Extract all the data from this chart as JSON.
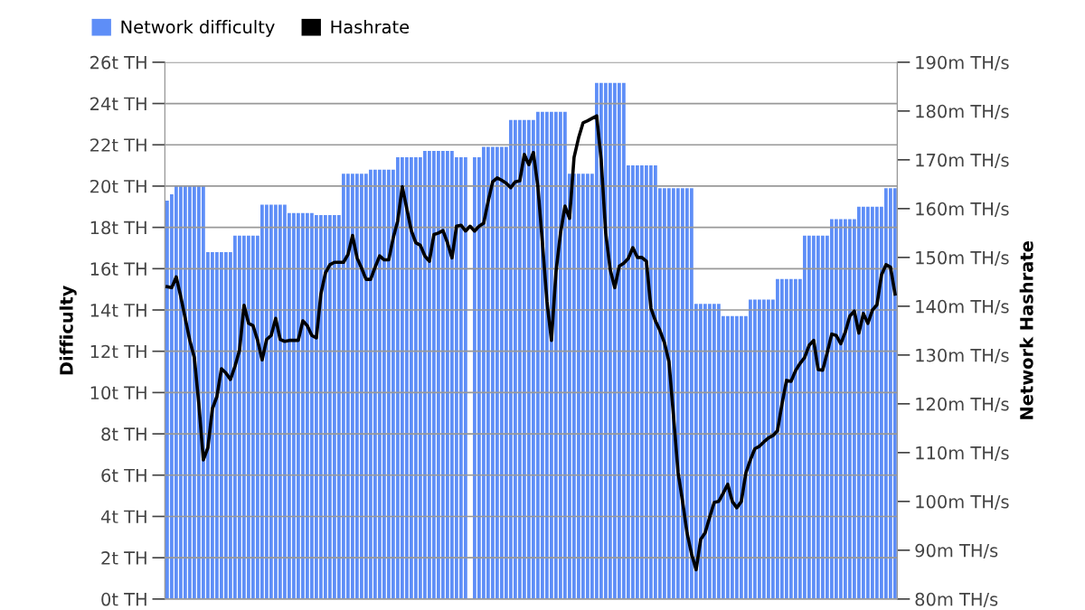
{
  "chart_data": {
    "type": "bar",
    "ylabel": "Difficulty",
    "y2label": "Network Hashrate",
    "categories": [
      null,
      null,
      null,
      null,
      null,
      null,
      null,
      null,
      null,
      null,
      null,
      null,
      null,
      null,
      null,
      null,
      null,
      null,
      null,
      null,
      null,
      null,
      null,
      null,
      null,
      null,
      null,
      null,
      null,
      null,
      null,
      null,
      null,
      null,
      null,
      null,
      null,
      null,
      null,
      null,
      null,
      null,
      null,
      null,
      null,
      null,
      null,
      null,
      null,
      null,
      null,
      null,
      null,
      null,
      null,
      null,
      null,
      null,
      null,
      null,
      null,
      null,
      null,
      null,
      null,
      null,
      null,
      null,
      null,
      null,
      null,
      null,
      null,
      null,
      null,
      null,
      null,
      null,
      null,
      null,
      null,
      null,
      null,
      null,
      null,
      null,
      null,
      null,
      null,
      null,
      null,
      null,
      null,
      null,
      null,
      null,
      null,
      null,
      null,
      null,
      null,
      null,
      null,
      null,
      null,
      null,
      null,
      null,
      null,
      null,
      null,
      null,
      null,
      null,
      null,
      null,
      null,
      null,
      null,
      null,
      null,
      null,
      null,
      null,
      null,
      null,
      null,
      null,
      null,
      null,
      null,
      null,
      null,
      null,
      null,
      null,
      null,
      null,
      null,
      null,
      null,
      null,
      null,
      null,
      null,
      null,
      null,
      null,
      null,
      null,
      null,
      null,
      null,
      null,
      null,
      null,
      null,
      null,
      null,
      null,
      null,
      null
    ],
    "series": [
      {
        "name": "Network difficulty",
        "color": "#5e8ef7",
        "values": [
          19.3,
          19.6,
          20.0,
          20.0,
          20.0,
          20.0,
          20.0,
          20.0,
          20.0,
          16.8,
          16.8,
          16.8,
          16.8,
          16.8,
          16.8,
          17.6,
          17.6,
          17.6,
          17.6,
          17.6,
          17.6,
          19.1,
          19.1,
          19.1,
          19.1,
          19.1,
          19.1,
          18.7,
          18.7,
          18.7,
          18.7,
          18.7,
          18.7,
          18.6,
          18.6,
          18.6,
          18.6,
          18.6,
          18.6,
          20.6,
          20.6,
          20.6,
          20.6,
          20.6,
          20.6,
          20.8,
          20.8,
          20.8,
          20.8,
          20.8,
          20.8,
          21.4,
          21.4,
          21.4,
          21.4,
          21.4,
          21.4,
          21.7,
          21.7,
          21.7,
          21.7,
          21.7,
          21.7,
          21.7,
          21.4,
          21.4,
          21.4,
          null,
          21.4,
          21.4,
          21.9,
          21.9,
          21.9,
          21.9,
          21.9,
          21.9,
          23.2,
          23.2,
          23.2,
          23.2,
          23.2,
          23.2,
          23.6,
          23.6,
          23.6,
          23.6,
          23.6,
          23.6,
          23.6,
          20.6,
          20.6,
          20.6,
          20.6,
          20.6,
          20.6,
          25.0,
          25.0,
          25.0,
          25.0,
          25.0,
          25.0,
          25.0,
          21.0,
          21.0,
          21.0,
          21.0,
          21.0,
          21.0,
          21.0,
          19.9,
          19.9,
          19.9,
          19.9,
          19.9,
          19.9,
          19.9,
          19.9,
          14.3,
          14.3,
          14.3,
          14.3,
          14.3,
          14.3,
          13.7,
          13.7,
          13.7,
          13.7,
          13.7,
          13.7,
          14.5,
          14.5,
          14.5,
          14.5,
          14.5,
          14.5,
          15.5,
          15.5,
          15.5,
          15.5,
          15.5,
          15.5,
          17.6,
          17.6,
          17.6,
          17.6,
          17.6,
          17.6,
          18.4,
          18.4,
          18.4,
          18.4,
          18.4,
          18.4,
          19.0,
          19.0,
          19.0,
          19.0,
          19.0,
          19.0,
          19.9,
          19.9,
          19.9
        ]
      },
      {
        "name": "Hashrate",
        "type": "line",
        "axis": "y2",
        "color": "#000000",
        "values": [
          144.0,
          143.8,
          146.0,
          142.0,
          137.5,
          133.0,
          129.5,
          120.0,
          108.5,
          111.0,
          119.0,
          121.5,
          127.2,
          126.3,
          125.0,
          127.7,
          131.0,
          140.2,
          136.5,
          136.0,
          133.0,
          129.0,
          133.2,
          134.0,
          137.5,
          133.2,
          132.8,
          133.0,
          133.0,
          133.0,
          137.0,
          136.0,
          134.0,
          133.5,
          142.5,
          146.8,
          148.5,
          149.0,
          149.0,
          149.0,
          150.6,
          154.5,
          149.9,
          147.8,
          145.5,
          145.5,
          148.0,
          150.3,
          149.5,
          149.5,
          154.0,
          157.5,
          164.5,
          160.0,
          155.5,
          153.0,
          152.5,
          150.3,
          149.2,
          154.7,
          155.0,
          155.5,
          153.0,
          149.9,
          156.4,
          156.6,
          155.4,
          156.4,
          155.4,
          156.4,
          157.0,
          161.5,
          165.5,
          166.3,
          165.8,
          165.2,
          164.3,
          165.5,
          165.7,
          171.1,
          169.0,
          171.5,
          164.5,
          153.0,
          141.0,
          133.0,
          147.0,
          155.0,
          160.5,
          158.0,
          170.5,
          174.5,
          177.6,
          178.0,
          178.5,
          179.0,
          170.0,
          155.0,
          147.5,
          143.8,
          148.2,
          148.8,
          149.8,
          152.0,
          150.0,
          150.0,
          149.2,
          139.6,
          137.0,
          135.0,
          132.5,
          128.6,
          117.5,
          106.0,
          100.0,
          93.5,
          89.2,
          86.0,
          92.2,
          93.6,
          96.8,
          99.8,
          100.0,
          101.7,
          103.5,
          100.0,
          98.7,
          100.0,
          105.8,
          108.5,
          110.8,
          111.3,
          112.2,
          113.0,
          113.5,
          114.5,
          120.0,
          124.8,
          124.6,
          126.8,
          128.3,
          129.5,
          132.0,
          133.0,
          127.0,
          126.9,
          130.5,
          134.3,
          134.0,
          132.3,
          134.7,
          138.0,
          139.0,
          134.5,
          138.5,
          136.5,
          139.2,
          140.3,
          146.4,
          148.5,
          148.0,
          142.5
        ]
      }
    ],
    "ylim": [
      0,
      26
    ],
    "yticks": [
      {
        "value": 0,
        "label": "0t TH"
      },
      {
        "value": 2,
        "label": "2t TH"
      },
      {
        "value": 4,
        "label": "4t TH"
      },
      {
        "value": 6,
        "label": "6t TH"
      },
      {
        "value": 8,
        "label": "8t TH"
      },
      {
        "value": 10,
        "label": "10t TH"
      },
      {
        "value": 12,
        "label": "12t TH"
      },
      {
        "value": 14,
        "label": "14t TH"
      },
      {
        "value": 16,
        "label": "16t TH"
      },
      {
        "value": 18,
        "label": "18t TH"
      },
      {
        "value": 20,
        "label": "20t TH"
      },
      {
        "value": 22,
        "label": "22t TH"
      },
      {
        "value": 24,
        "label": "24t TH"
      },
      {
        "value": 26,
        "label": "26t TH"
      }
    ],
    "y2lim": [
      80,
      190
    ],
    "y2ticks": [
      {
        "value": 80,
        "label": "80m TH/s"
      },
      {
        "value": 90,
        "label": "90m TH/s"
      },
      {
        "value": 100,
        "label": "100m TH/s"
      },
      {
        "value": 110,
        "label": "110m TH/s"
      },
      {
        "value": 120,
        "label": "120m TH/s"
      },
      {
        "value": 130,
        "label": "130m TH/s"
      },
      {
        "value": 140,
        "label": "140m TH/s"
      },
      {
        "value": 150,
        "label": "150m TH/s"
      },
      {
        "value": 160,
        "label": "160m TH/s"
      },
      {
        "value": 170,
        "label": "170m TH/s"
      },
      {
        "value": 180,
        "label": "180m TH/s"
      },
      {
        "value": 190,
        "label": "190m TH/s"
      }
    ],
    "grid": "y",
    "legend": "top left"
  }
}
